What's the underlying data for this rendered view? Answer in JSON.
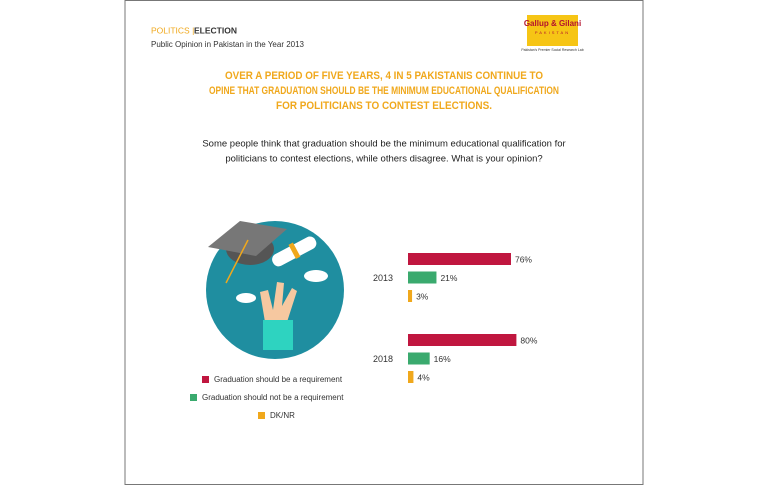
{
  "header": {
    "section": "POLITICS |",
    "topic": "ELECTION",
    "subtitle": "Public Opinion in Pakistan in the Year 2013"
  },
  "logo": {
    "name": "Gallup & Gilani",
    "country": "PAKISTAN",
    "tagline": "Pakistan's Premier Social Research Lab"
  },
  "chart_data": {
    "type": "bar",
    "orientation": "horizontal",
    "title": [
      "OVER A PERIOD OF FIVE YEARS, 4 IN 5 PAKISTANIS CONTINUE TO",
      "OPINE THAT GRADUATION SHOULD BE THE MINIMUM EDUCATIONAL QUALIFICATION",
      "FOR  POLITICIANS TO CONTEST ELECTIONS."
    ],
    "subtitle": [
      "Some people think that graduation should be the minimum educational qualification for",
      "politicians to contest elections, while others disagree. What is your opinion?"
    ],
    "categories": [
      "2013",
      "2018"
    ],
    "series": [
      {
        "name": "Graduation should be a requirement",
        "color": "#c0163f",
        "values": [
          76,
          80
        ],
        "value_labels": [
          "76%",
          "80%"
        ]
      },
      {
        "name": "Graduation should not be a requirement",
        "color": "#3aaa6e",
        "values": [
          21,
          16
        ],
        "value_labels": [
          "21%",
          "16%"
        ]
      },
      {
        "name": "DK/NR",
        "color": "#f0a81c",
        "values": [
          3,
          4
        ],
        "value_labels": [
          "3%",
          "4%"
        ]
      }
    ]
  }
}
